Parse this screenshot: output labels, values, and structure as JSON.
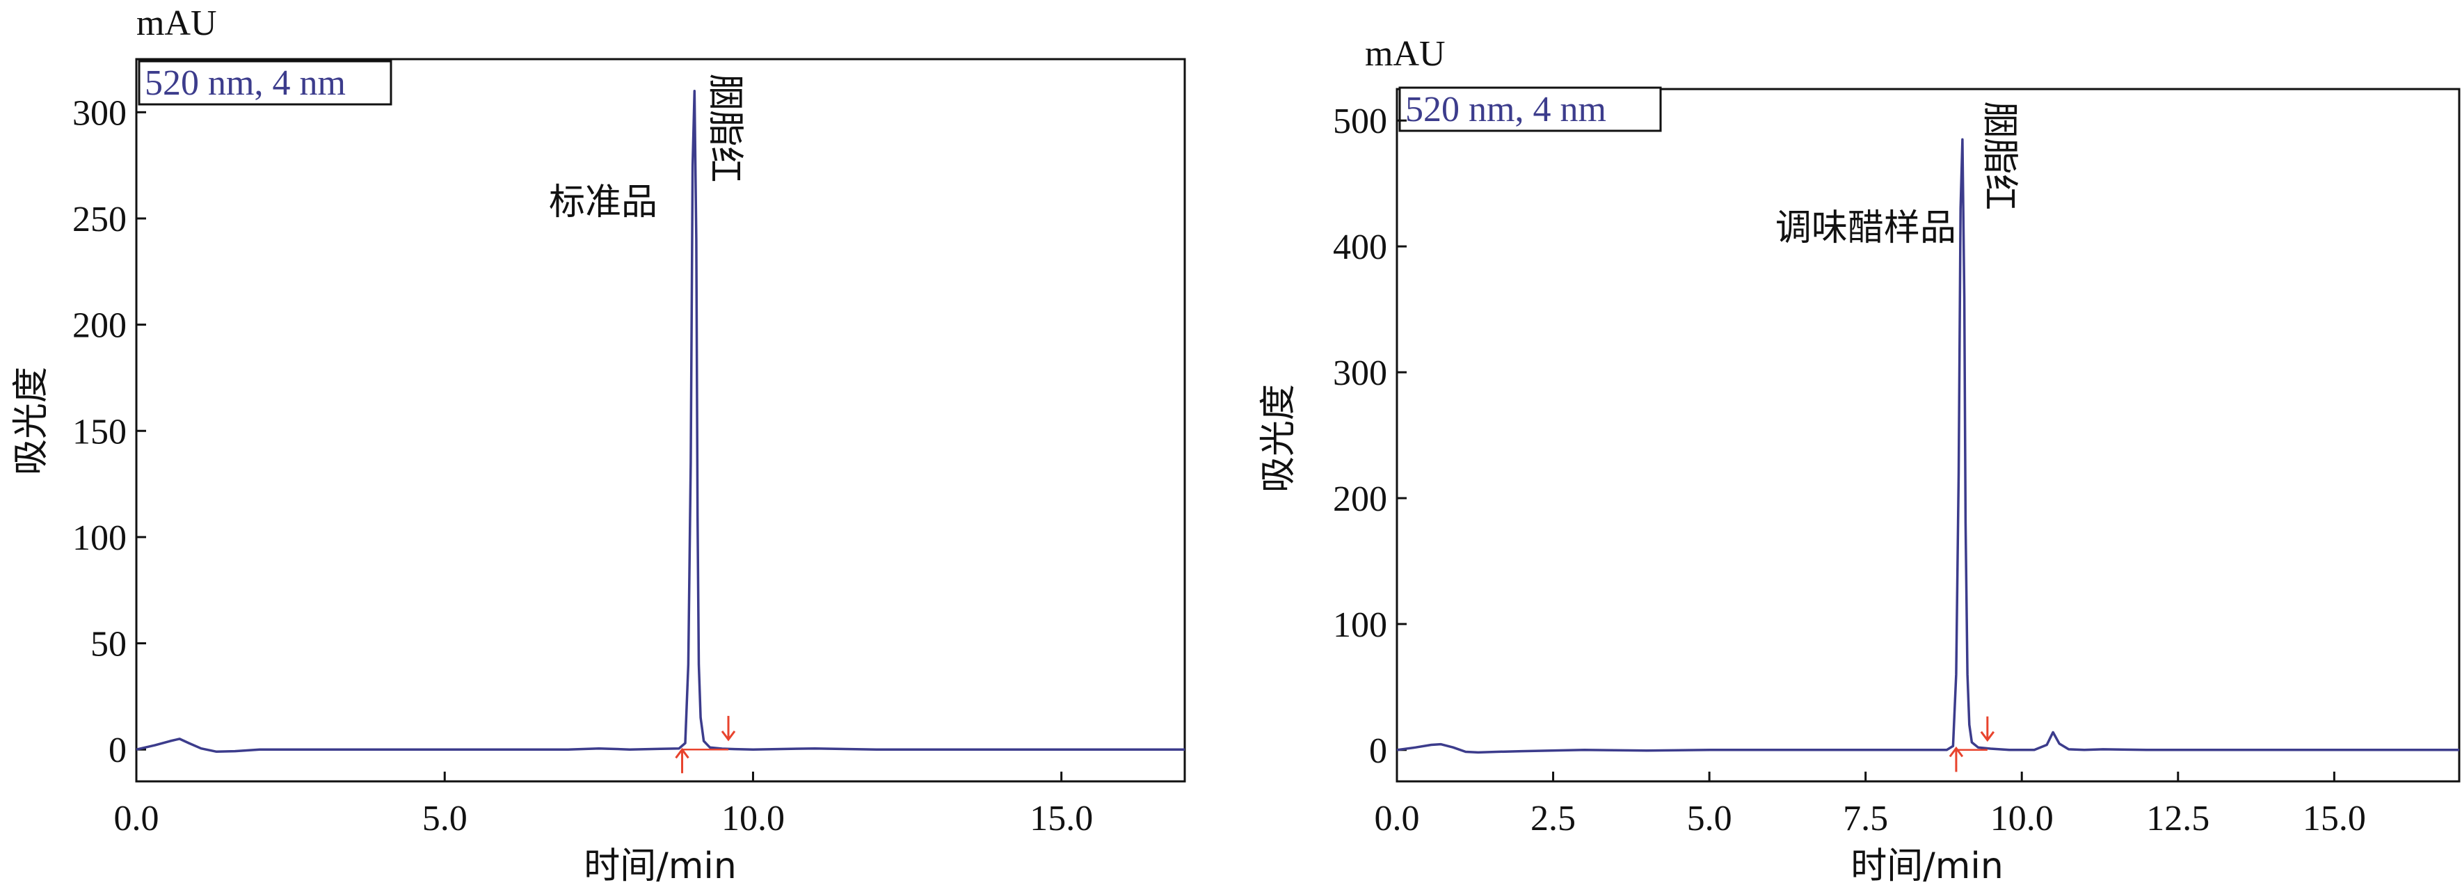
{
  "chart_data": [
    {
      "type": "line",
      "unit_label": "mAU",
      "wavelength_label": "520 nm, 4 nm",
      "xlabel": "时间/min",
      "ylabel": "吸光度",
      "xlim": [
        0,
        17
      ],
      "ylim": [
        -15,
        325
      ],
      "xticks": [
        0,
        5,
        10,
        15
      ],
      "xtick_labels": [
        "0.0",
        "5.0",
        "10.0",
        "15.0"
      ],
      "yticks": [
        0,
        50,
        100,
        150,
        200,
        250,
        300
      ],
      "ytick_labels": [
        "0",
        "50",
        "100",
        "150",
        "200",
        "250",
        "300"
      ],
      "annotations": [
        {
          "text": "标准品",
          "x": 8.45,
          "y": 252,
          "vertical": false
        },
        {
          "text": "胭脂红",
          "x": 9.35,
          "y": 318,
          "vertical": true
        }
      ],
      "markers": [
        {
          "x": 8.85,
          "y": -2,
          "direction": "up",
          "color": "#e8432d"
        },
        {
          "x": 9.6,
          "y": 6,
          "direction": "down",
          "color": "#e8432d"
        }
      ],
      "series": [
        {
          "color": "#3c3c8c",
          "x": [
            0.0,
            0.3,
            0.55,
            0.7,
            0.85,
            1.05,
            1.3,
            1.6,
            2.0,
            3.0,
            4.0,
            5.0,
            6.0,
            7.0,
            7.5,
            8.0,
            8.5,
            8.8,
            8.9,
            8.95,
            8.99,
            9.02,
            9.05,
            9.08,
            9.1,
            9.12,
            9.15,
            9.2,
            9.3,
            9.5,
            9.7,
            10.0,
            11.0,
            12.0,
            13.0,
            14.0,
            15.0,
            16.0,
            17.0
          ],
          "y": [
            0,
            2,
            4,
            5,
            3,
            0.5,
            -1,
            -0.8,
            0,
            0,
            0,
            0,
            0,
            0,
            0.5,
            0,
            0.3,
            0.5,
            3,
            40,
            135,
            275,
            310,
            240,
            110,
            40,
            15,
            4,
            1,
            0.4,
            0.2,
            0,
            0.5,
            0,
            0,
            0,
            0,
            0,
            0
          ]
        }
      ]
    },
    {
      "type": "line",
      "unit_label": "mAU",
      "wavelength_label": "520 nm, 4 nm",
      "xlabel": "时间/min",
      "ylabel": "吸光度",
      "xlim": [
        0,
        17
      ],
      "ylim": [
        -25,
        525
      ],
      "xticks": [
        0,
        2.5,
        5,
        7.5,
        10,
        12.5,
        15
      ],
      "xtick_labels": [
        "0.0",
        "2.5",
        "5.0",
        "7.5",
        "10.0",
        "12.5",
        "15.0"
      ],
      "yticks": [
        0,
        100,
        200,
        300,
        400,
        500
      ],
      "ytick_labels": [
        "0",
        "100",
        "200",
        "300",
        "400",
        "500"
      ],
      "annotations": [
        {
          "text": "调味醋样品",
          "x": 8.95,
          "y": 405,
          "vertical": false
        },
        {
          "text": "胭脂红",
          "x": 9.45,
          "y": 515,
          "vertical": true
        }
      ],
      "markers": [
        {
          "x": 8.95,
          "y": -2,
          "direction": "up",
          "color": "#e8432d"
        },
        {
          "x": 9.45,
          "y": 10,
          "direction": "down",
          "color": "#e8432d"
        }
      ],
      "series": [
        {
          "color": "#3c3c8c",
          "x": [
            0.0,
            0.3,
            0.55,
            0.7,
            0.9,
            1.1,
            1.3,
            1.6,
            2.0,
            3.0,
            4.0,
            5.0,
            6.0,
            7.0,
            8.0,
            8.8,
            8.9,
            8.95,
            8.99,
            9.02,
            9.05,
            9.08,
            9.1,
            9.13,
            9.16,
            9.2,
            9.3,
            9.5,
            9.8,
            10.2,
            10.4,
            10.5,
            10.6,
            10.75,
            11.0,
            11.3,
            12.0,
            13.0,
            14.0,
            15.0,
            16.0,
            17.0
          ],
          "y": [
            0,
            2,
            4,
            4.5,
            2,
            -1.5,
            -2,
            -1.5,
            -1,
            0,
            -0.5,
            0,
            0,
            0,
            0,
            0,
            3,
            60,
            220,
            430,
            485,
            360,
            180,
            60,
            20,
            6,
            2,
            1,
            0,
            0,
            4,
            14,
            5,
            0.5,
            0,
            0.5,
            0,
            0,
            0,
            0,
            0,
            0
          ]
        }
      ]
    }
  ]
}
